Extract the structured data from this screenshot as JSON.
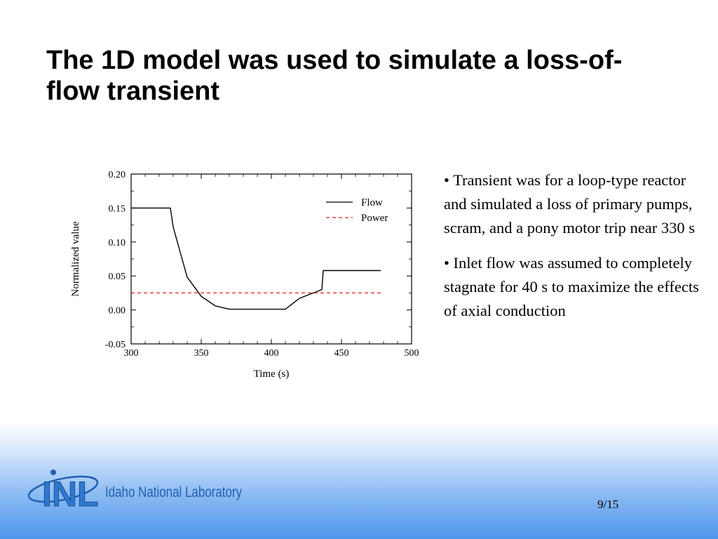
{
  "slide": {
    "title": "The 1D model was used to simulate a loss-of-flow transient",
    "bullets": [
      "• Transient was for a loop-type reactor and simulated a loss of primary pumps, scram, and a pony motor trip near 330 s",
      "• Inlet flow was assumed to completely stagnate for 40 s to maximize the effects of axial conduction"
    ],
    "page_number": "9/15",
    "logo": {
      "mark": "INL",
      "text": "Idaho National Laboratory"
    }
  },
  "chart_data": {
    "type": "line",
    "title": "",
    "xlabel": "Time (s)",
    "ylabel": "Normalized value",
    "xlim": [
      300,
      500
    ],
    "ylim": [
      -0.05,
      0.2
    ],
    "x_ticks": [
      "300",
      "350",
      "400",
      "450",
      "500"
    ],
    "y_ticks": [
      "0.20",
      "0.15",
      "0.10",
      "0.05",
      "0.00",
      "-0.05"
    ],
    "grid": false,
    "legend_position": "top-right",
    "series": [
      {
        "name": "Flow",
        "color": "#000000",
        "style": "solid",
        "x": [
          300,
          328,
          330,
          335,
          340,
          350,
          360,
          370,
          380,
          390,
          400,
          410,
          420,
          430,
          436,
          437,
          450,
          470,
          478
        ],
        "y": [
          0.15,
          0.15,
          0.122,
          0.085,
          0.048,
          0.02,
          0.006,
          0.001,
          0.001,
          0.001,
          0.001,
          0.001,
          0.017,
          0.025,
          0.03,
          0.058,
          0.058,
          0.058,
          0.058
        ]
      },
      {
        "name": "Power",
        "color": "#e32222",
        "style": "dashed",
        "x": [
          300,
          478
        ],
        "y": [
          0.025,
          0.025
        ]
      }
    ]
  }
}
